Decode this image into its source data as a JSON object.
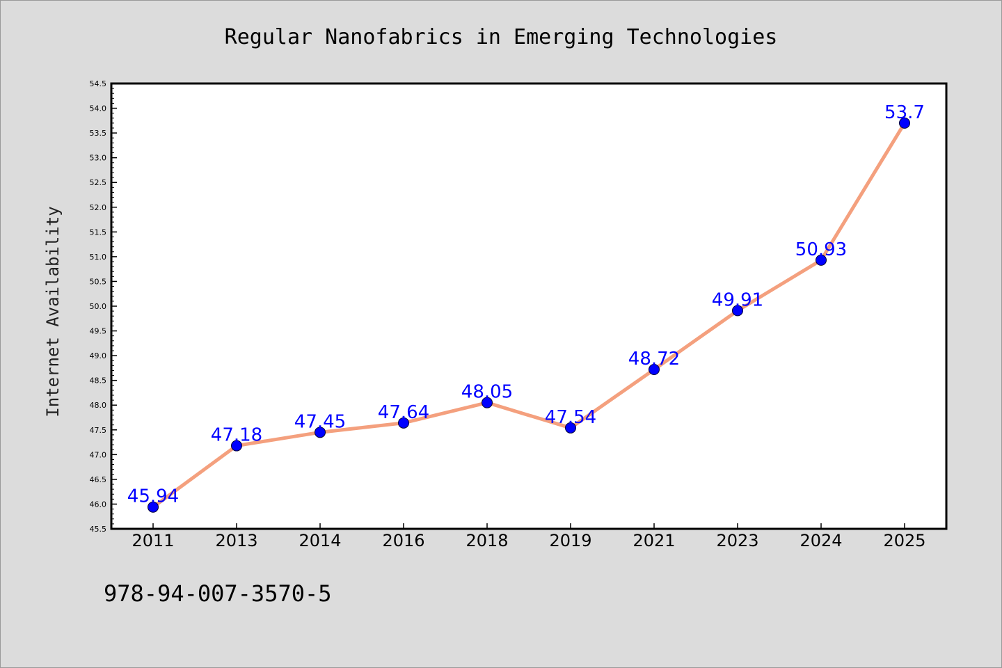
{
  "chart_data": {
    "type": "line",
    "title": "Regular Nanofabrics in Emerging Technologies",
    "xlabel": "",
    "ylabel": "Internet Availability",
    "categories": [
      "2011",
      "2013",
      "2014",
      "2016",
      "2018",
      "2019",
      "2021",
      "2023",
      "2024",
      "2025"
    ],
    "series": [
      {
        "values": [
          45.94,
          47.18,
          47.45,
          47.64,
          48.05,
          47.54,
          48.72,
          49.91,
          50.93,
          53.7
        ],
        "labels": [
          "45.94",
          "47.18",
          "47.45",
          "47.64",
          "48.05",
          "47.54",
          "48.72",
          "49.91",
          "50.93",
          "53.7"
        ],
        "line_color": "#f4a07e",
        "marker_color": "#0000ff"
      }
    ],
    "ylim": [
      45.5,
      54.5
    ],
    "yticks": [
      "45.5",
      "46.0",
      "46.5",
      "47.0",
      "47.5",
      "48.0",
      "48.5",
      "49.0",
      "49.5",
      "50.0",
      "50.5",
      "51.0",
      "51.5",
      "52.0",
      "52.5",
      "53.0",
      "53.5",
      "54.0",
      "54.5"
    ],
    "grid": false,
    "label_color": "#0000ff",
    "background": "#dcdcdc",
    "plot_background": "#ffffff"
  },
  "footnote": "978-94-007-3570-5"
}
